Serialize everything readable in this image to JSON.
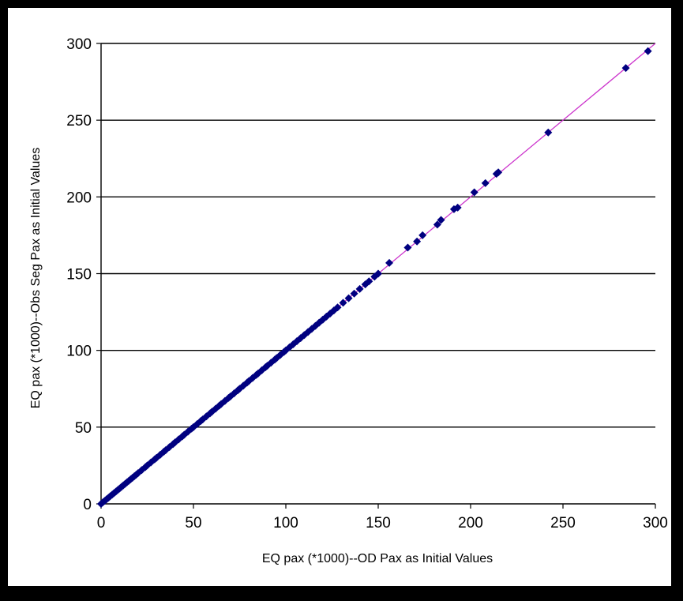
{
  "chart_data": {
    "type": "scatter",
    "title": "",
    "xlabel": "EQ pax (*1000)--OD Pax as Initial Values",
    "ylabel": "EQ pax (*1000)--Obs Seg Pax as Initial Values",
    "xlim": [
      0,
      300
    ],
    "ylim": [
      0,
      300
    ],
    "x_ticks": [
      "0",
      "50",
      "100",
      "150",
      "200",
      "250",
      "300"
    ],
    "y_ticks": [
      "0",
      "50",
      "100",
      "150",
      "200",
      "250",
      "300"
    ],
    "grid": "horizontal",
    "legend": "none",
    "colors": {
      "points": "#000080",
      "trendline": "#cc33cc",
      "grid": "#000000"
    },
    "trendline": {
      "x": [
        0,
        300
      ],
      "y": [
        0,
        300
      ]
    },
    "series": [
      {
        "x": [
          0,
          1,
          2,
          3,
          4,
          5,
          6,
          7,
          8,
          9,
          10,
          11,
          12,
          13,
          14,
          15,
          16,
          17,
          18,
          19,
          20,
          22,
          24,
          25,
          27,
          29,
          30,
          32,
          34,
          35,
          37,
          39,
          40,
          42,
          44,
          45,
          47,
          49,
          50,
          52,
          54,
          55,
          57,
          59,
          60,
          62,
          64,
          65,
          67,
          69,
          70,
          72,
          74,
          75,
          77,
          79,
          80,
          82,
          84,
          85,
          87,
          89,
          90,
          92,
          94,
          95,
          97,
          99,
          100,
          102,
          104,
          106,
          108,
          110,
          112,
          114,
          116,
          118,
          120,
          122,
          124,
          126,
          128,
          131,
          134,
          137,
          140,
          143,
          145,
          148,
          150,
          156,
          166,
          171,
          174,
          182,
          184,
          191,
          193,
          202,
          208,
          214,
          215,
          242,
          284,
          296
        ],
        "y": [
          0,
          1,
          2,
          3,
          4,
          5,
          6,
          7,
          8,
          9,
          10,
          11,
          12,
          13,
          14,
          15,
          16,
          17,
          18,
          19,
          20,
          22,
          24,
          25,
          27,
          29,
          30,
          32,
          34,
          35,
          37,
          39,
          40,
          42,
          44,
          45,
          47,
          49,
          50,
          52,
          54,
          55,
          57,
          59,
          60,
          62,
          64,
          65,
          67,
          69,
          70,
          72,
          74,
          75,
          77,
          79,
          80,
          82,
          84,
          85,
          87,
          89,
          90,
          92,
          94,
          95,
          97,
          99,
          100,
          102,
          104,
          106,
          108,
          110,
          112,
          114,
          116,
          118,
          120,
          122,
          124,
          126,
          128,
          131,
          134,
          137,
          140,
          143,
          145,
          148,
          150,
          157,
          167,
          171,
          175,
          182,
          185,
          192,
          193,
          203,
          209,
          215,
          216,
          242,
          284,
          295
        ]
      }
    ]
  }
}
